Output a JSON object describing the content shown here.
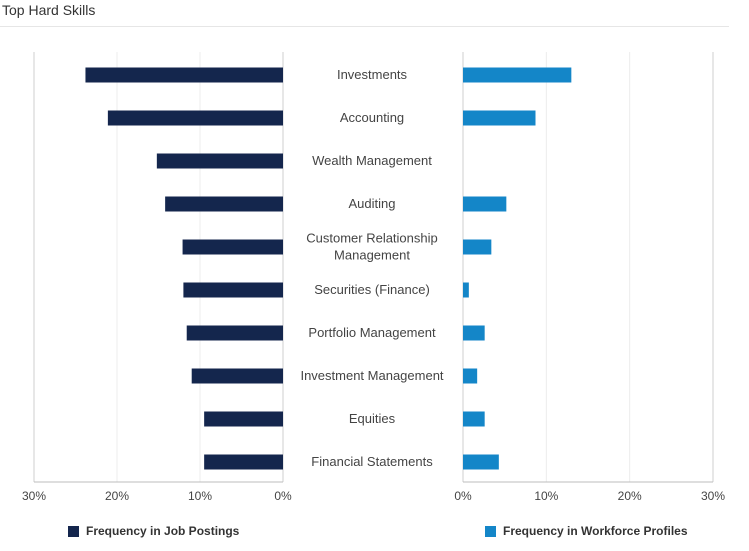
{
  "title": "Top Hard Skills",
  "chart_data": {
    "type": "bar",
    "orientation": "horizontal-diverging",
    "categories": [
      "Investments",
      "Accounting",
      "Wealth Management",
      "Auditing",
      "Customer Relationship Management",
      "Securities (Finance)",
      "Portfolio Management",
      "Investment Management",
      "Equities",
      "Financial Statements"
    ],
    "category_lines": [
      [
        "Investments"
      ],
      [
        "Accounting"
      ],
      [
        "Wealth Management"
      ],
      [
        "Auditing"
      ],
      [
        "Customer Relationship",
        "Management"
      ],
      [
        "Securities (Finance)"
      ],
      [
        "Portfolio Management"
      ],
      [
        "Investment Management"
      ],
      [
        "Equities"
      ],
      [
        "Financial Statements"
      ]
    ],
    "series": [
      {
        "name": "Frequency in Job Postings",
        "color": "#14264d",
        "values": [
          23.8,
          21.1,
          15.2,
          14.2,
          12.1,
          12.0,
          11.6,
          11.0,
          9.5,
          9.5
        ]
      },
      {
        "name": "Frequency in Workforce Profiles",
        "color": "#1486c8",
        "values": [
          13.0,
          8.7,
          0,
          5.2,
          3.4,
          0.7,
          2.6,
          1.7,
          2.6,
          4.3
        ]
      }
    ],
    "xlim": [
      0,
      30
    ],
    "ticks": [
      30,
      20,
      10,
      0
    ],
    "tick_labels_left": [
      "30%",
      "20%",
      "10%",
      "0%"
    ],
    "tick_labels_right": [
      "0%",
      "10%",
      "20%",
      "30%"
    ],
    "grid": true,
    "legend": "bottom"
  }
}
